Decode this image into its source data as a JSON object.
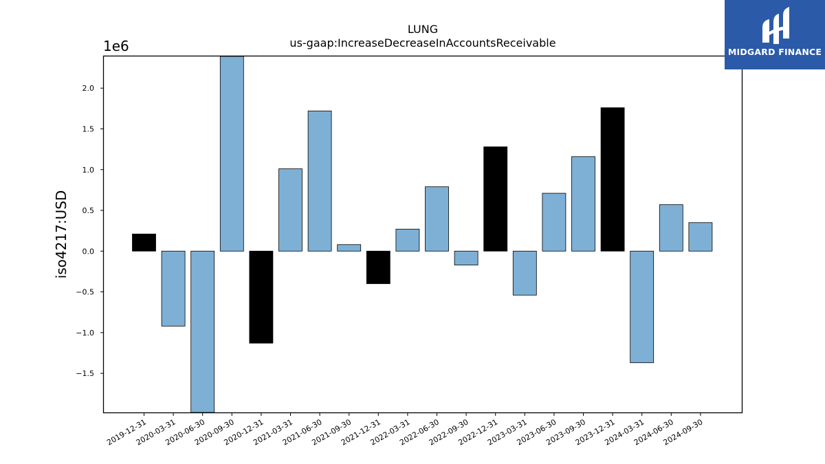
{
  "chart_data": {
    "type": "bar",
    "title": "LUNG",
    "subtitle": "us-gaap:IncreaseDecreaseInAccountsReceivable",
    "ylabel": "iso4217:USD",
    "xlabel": "",
    "y_multiplier_label": "1e6",
    "ylim": [
      -1.98,
      2.39
    ],
    "yticks": [
      -1.5,
      -1.0,
      -0.5,
      0.0,
      0.5,
      1.0,
      1.5,
      2.0
    ],
    "ytick_labels": [
      "−1.5",
      "−1.0",
      "−0.5",
      "0.0",
      "0.5",
      "1.0",
      "1.5",
      "2.0"
    ],
    "grid": false,
    "categories": [
      "2019-12-31",
      "2020-03-31",
      "2020-06-30",
      "2020-09-30",
      "2020-12-31",
      "2021-03-31",
      "2021-06-30",
      "2021-09-30",
      "2021-12-31",
      "2022-03-31",
      "2022-06-30",
      "2022-09-30",
      "2022-12-31",
      "2023-03-31",
      "2023-06-30",
      "2023-09-30",
      "2023-12-31",
      "2024-03-31",
      "2024-06-30",
      "2024-09-30"
    ],
    "values": [
      0.21,
      -0.92,
      -1.98,
      2.39,
      -1.13,
      1.01,
      1.72,
      0.08,
      -0.4,
      0.27,
      0.79,
      -0.17,
      1.28,
      -0.54,
      0.71,
      1.16,
      1.76,
      -1.37,
      0.57,
      0.35
    ],
    "highlighted": [
      true,
      false,
      false,
      false,
      true,
      false,
      false,
      false,
      true,
      false,
      false,
      false,
      true,
      false,
      false,
      false,
      true,
      false,
      false,
      false
    ],
    "colors": {
      "default": "#7eb0d5",
      "highlight": "#000000",
      "edge": "#000000"
    }
  },
  "logo": {
    "text": "MIDGARD FINANCE",
    "background": "#2b5aa8"
  }
}
